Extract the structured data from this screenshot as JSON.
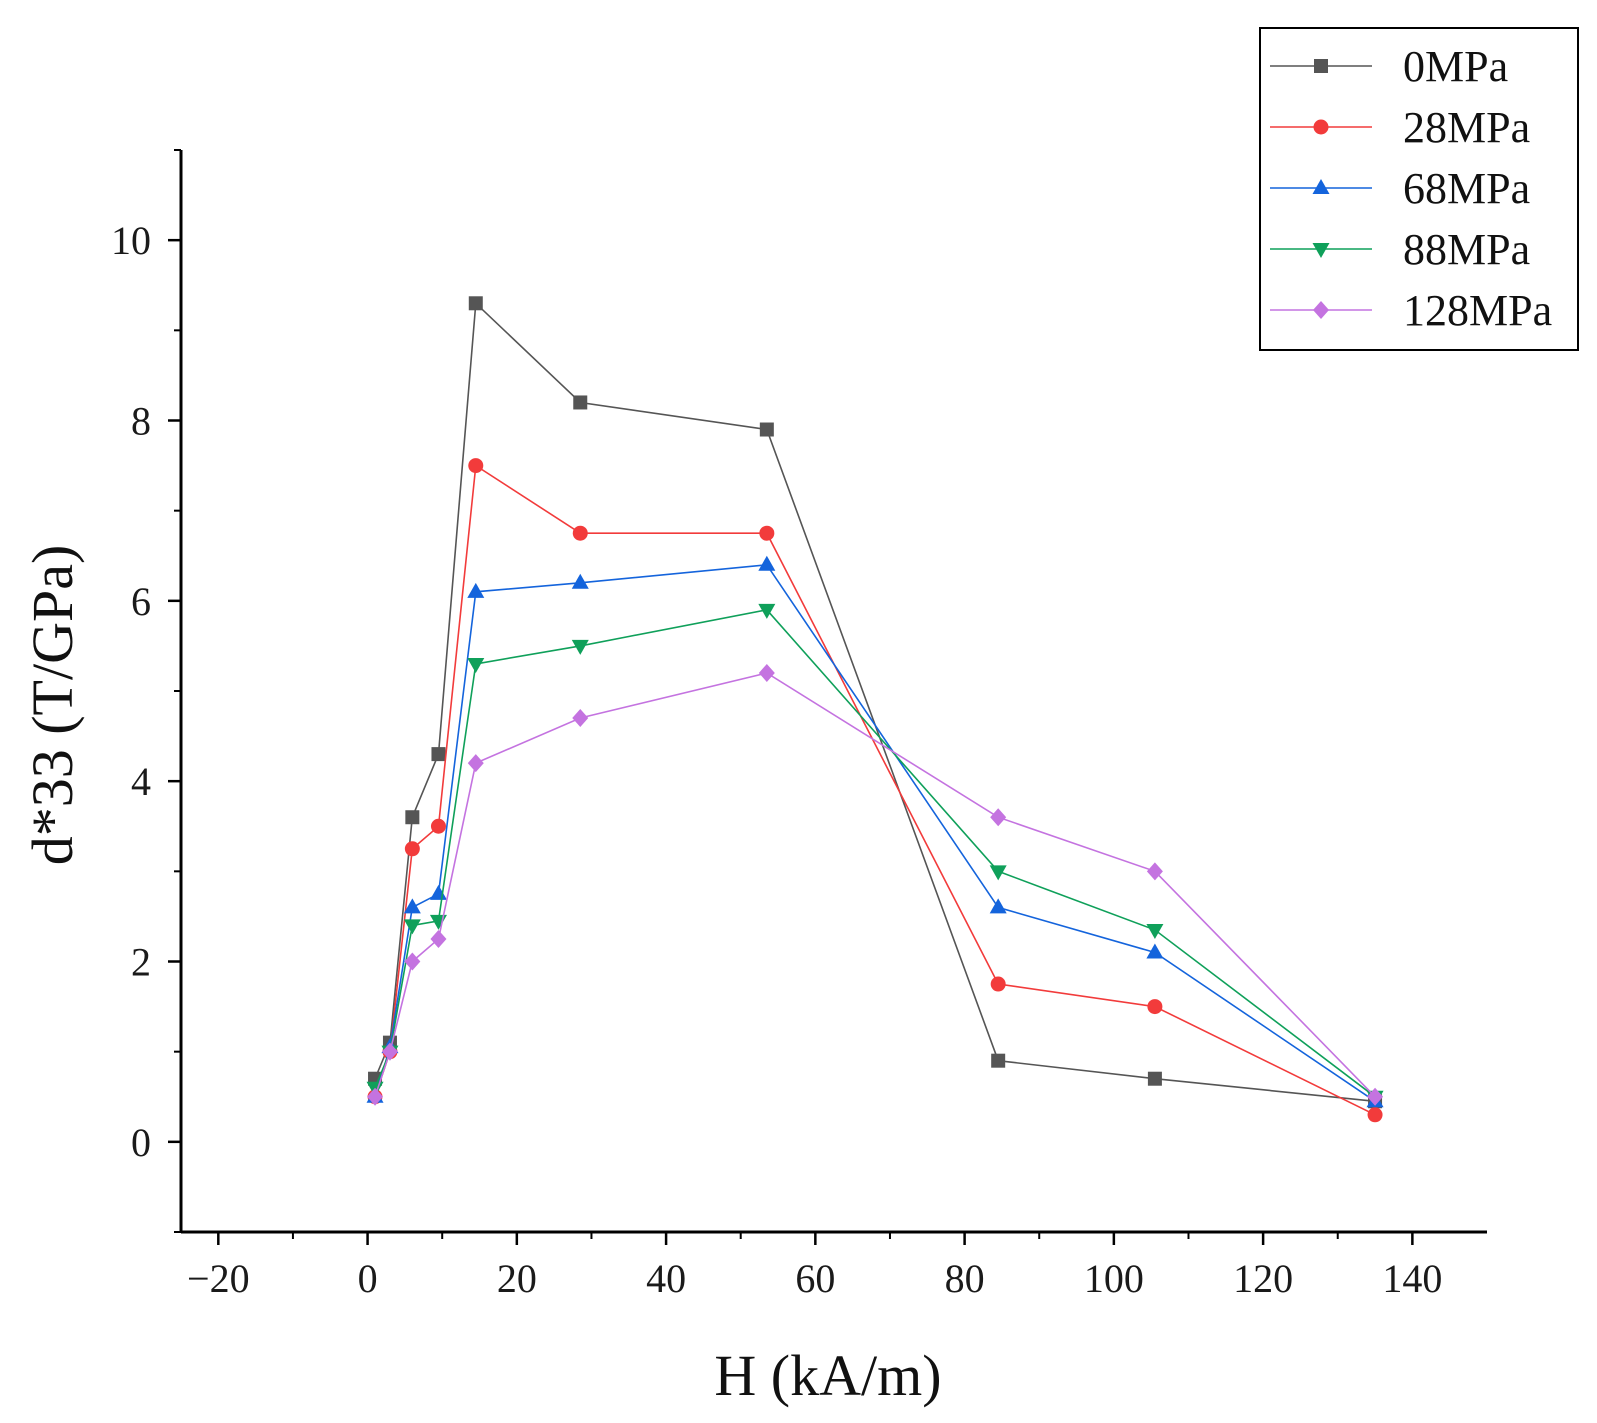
{
  "chart_data": {
    "type": "line",
    "title": "",
    "xlabel": "H (kA/m)",
    "ylabel": "d*33 (T/GPa)",
    "xlim": [
      -25,
      150
    ],
    "ylim": [
      -1,
      11
    ],
    "xticks": [
      -20,
      0,
      20,
      40,
      60,
      80,
      100,
      120,
      140
    ],
    "yticks": [
      0,
      2,
      4,
      6,
      8,
      10
    ],
    "grid": false,
    "legend_position": "top-right",
    "series": [
      {
        "name": "0MPa",
        "color": "#555555",
        "marker": "square",
        "x": [
          1,
          3,
          6,
          9.5,
          14.5,
          28.5,
          53.5,
          84.5,
          105.5,
          135
        ],
        "y": [
          0.7,
          1.1,
          3.6,
          4.3,
          9.3,
          8.2,
          7.9,
          0.9,
          0.7,
          0.45
        ]
      },
      {
        "name": "28MPa",
        "color": "#f23b3b",
        "marker": "circle",
        "x": [
          1,
          3,
          6,
          9.5,
          14.5,
          28.5,
          53.5,
          84.5,
          105.5,
          135
        ],
        "y": [
          0.5,
          1.0,
          3.25,
          3.5,
          7.5,
          6.75,
          6.75,
          1.75,
          1.5,
          0.3
        ]
      },
      {
        "name": "68MPa",
        "color": "#1464dc",
        "marker": "triangle-up",
        "x": [
          1,
          3,
          6,
          9.5,
          14.5,
          28.5,
          53.5,
          84.5,
          105.5,
          135
        ],
        "y": [
          0.5,
          1.05,
          2.6,
          2.75,
          6.1,
          6.2,
          6.4,
          2.6,
          2.1,
          0.45
        ]
      },
      {
        "name": "88MPa",
        "color": "#0fa05a",
        "marker": "triangle-down",
        "x": [
          1,
          3,
          6,
          9.5,
          14.5,
          28.5,
          53.5,
          84.5,
          105.5,
          135
        ],
        "y": [
          0.6,
          1.0,
          2.4,
          2.45,
          5.3,
          5.5,
          5.9,
          3.0,
          2.35,
          0.5
        ]
      },
      {
        "name": "128MPa",
        "color": "#c473e0",
        "marker": "diamond",
        "x": [
          1,
          3,
          6,
          9.5,
          14.5,
          28.5,
          53.5,
          84.5,
          105.5,
          135
        ],
        "y": [
          0.5,
          1.0,
          2.0,
          2.25,
          4.2,
          4.7,
          5.2,
          3.6,
          3.0,
          0.5
        ]
      }
    ]
  }
}
